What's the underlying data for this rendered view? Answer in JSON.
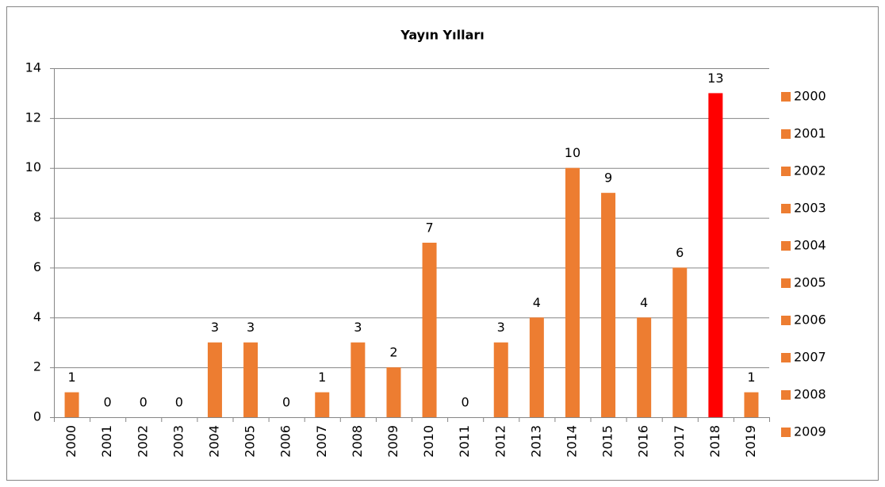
{
  "chart_data": {
    "type": "bar",
    "title": "Yayın Yılları",
    "categories": [
      "2000",
      "2001",
      "2002",
      "2003",
      "2004",
      "2005",
      "2006",
      "2007",
      "2008",
      "2009",
      "2010",
      "2011",
      "2012",
      "2013",
      "2014",
      "2015",
      "2016",
      "2017",
      "2018",
      "2019"
    ],
    "values": [
      1,
      0,
      0,
      0,
      3,
      3,
      0,
      1,
      3,
      2,
      7,
      0,
      3,
      4,
      10,
      9,
      4,
      6,
      13,
      1
    ],
    "colors": [
      "#ed7d31",
      "#ed7d31",
      "#ed7d31",
      "#ed7d31",
      "#ed7d31",
      "#ed7d31",
      "#ed7d31",
      "#ed7d31",
      "#ed7d31",
      "#ed7d31",
      "#ed7d31",
      "#ed7d31",
      "#ed7d31",
      "#ed7d31",
      "#ed7d31",
      "#ed7d31",
      "#ed7d31",
      "#ed7d31",
      "#ff0000",
      "#ed7d31"
    ],
    "ylim": [
      0,
      14
    ],
    "yticks": [
      0,
      2,
      4,
      6,
      8,
      10,
      12,
      14
    ],
    "grid": true,
    "legend": "right"
  }
}
